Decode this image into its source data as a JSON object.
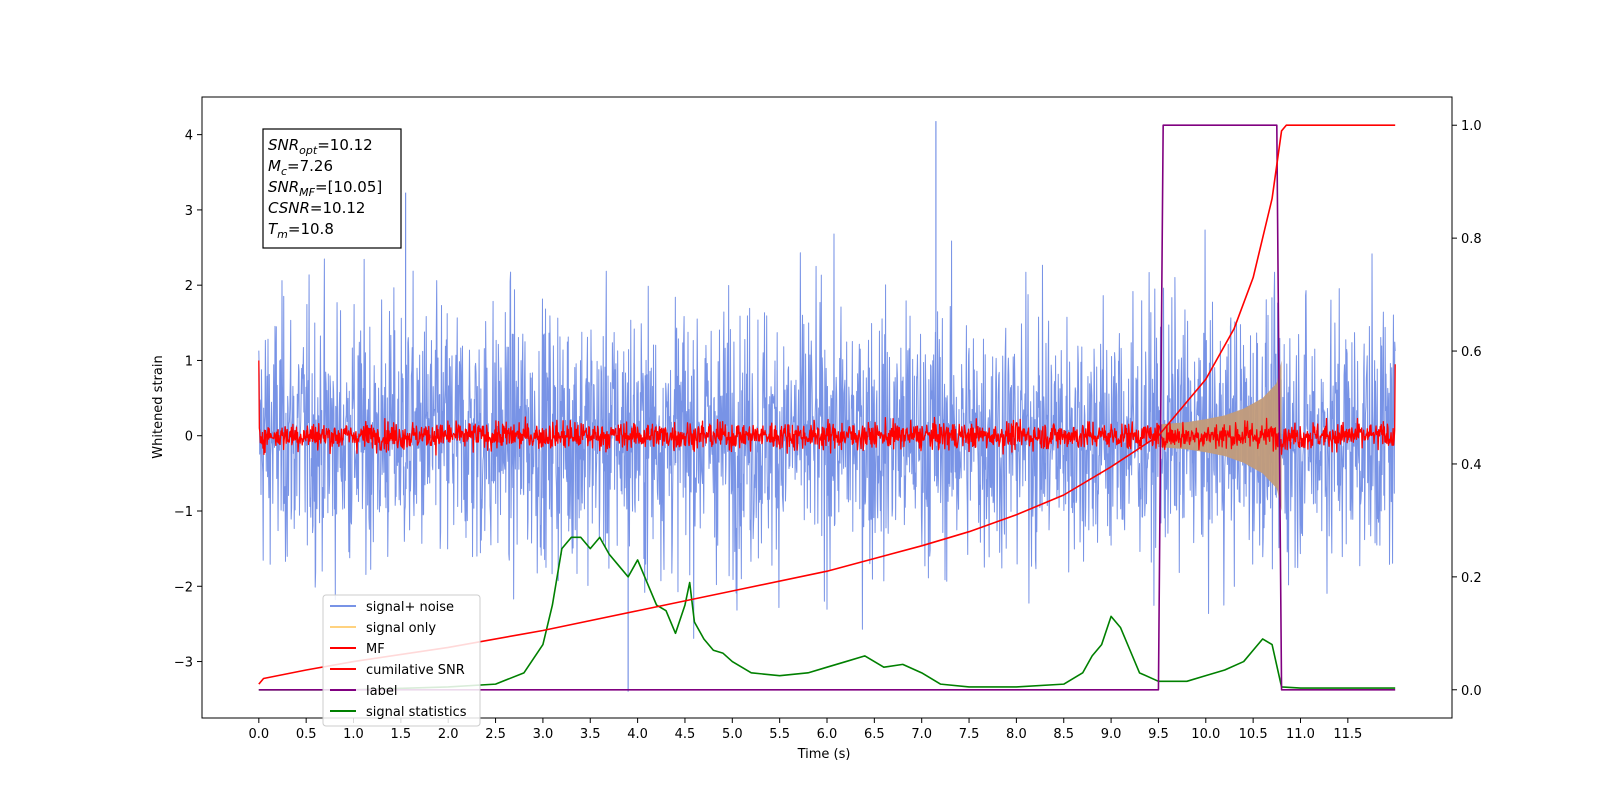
{
  "chart_data": {
    "type": "line",
    "title": "",
    "xlabel": "Time (s)",
    "ylabel": "Whitened strain",
    "xlim": [
      -0.6,
      12.6
    ],
    "ylim": [
      -3.75,
      4.5
    ],
    "y2lim": [
      -0.05,
      1.05
    ],
    "xticks": [
      "0.0",
      "0.5",
      "1.0",
      "1.5",
      "2.0",
      "2.5",
      "3.0",
      "3.5",
      "4.0",
      "4.5",
      "5.0",
      "5.5",
      "6.0",
      "6.5",
      "7.0",
      "7.5",
      "8.0",
      "8.5",
      "9.0",
      "9.5",
      "10.0",
      "10.5",
      "11.0",
      "11.5"
    ],
    "yticks": [
      "−3",
      "−2",
      "−1",
      "0",
      "1",
      "2",
      "3",
      "4"
    ],
    "y2ticks": [
      "0.0",
      "0.2",
      "0.4",
      "0.6",
      "0.8",
      "1.0"
    ],
    "grid": false,
    "legend_position": "lower-left",
    "annotation": {
      "lines": [
        {
          "sym": "SNR",
          "sub": "opt",
          "text": "=10.12"
        },
        {
          "sym": "M",
          "sub": "c",
          "text": "=7.26"
        },
        {
          "sym": "SNR",
          "sub": "MF",
          "text": "=[10.05]"
        },
        {
          "sym": "CSNR",
          "sub": "",
          "text": "=10.12"
        },
        {
          "sym": "T",
          "sub": "m",
          "text": "=10.8"
        }
      ]
    },
    "series": [
      {
        "name": "signal+ noise",
        "color": "#7893e6",
        "axis": "left",
        "style": "noise",
        "noise_std": 0.85,
        "x_range": [
          0.0,
          12.0
        ],
        "sample_peaks": [
          {
            "x": 7.15,
            "y": 4.18
          },
          {
            "x": 3.9,
            "y": -3.4
          },
          {
            "x": 1.55,
            "y": 3.23
          }
        ]
      },
      {
        "name": "signal only",
        "color": "#ffd27f",
        "axis": "left",
        "style": "chirp",
        "x": [
          9.5,
          9.8,
          10.0,
          10.2,
          10.4,
          10.6,
          10.75,
          10.8
        ],
        "envelope": [
          0.15,
          0.18,
          0.22,
          0.27,
          0.36,
          0.5,
          0.7,
          1.0
        ]
      },
      {
        "name": "MF",
        "color": "#ff0000",
        "axis": "left",
        "style": "noise",
        "noise_std": 0.09,
        "x_range": [
          0.0,
          12.0
        ]
      },
      {
        "name": "cumilative SNR",
        "color": "#ff0000",
        "axis": "right",
        "x": [
          0.0,
          0.05,
          0.5,
          1.0,
          2.0,
          3.0,
          4.0,
          5.0,
          6.0,
          7.0,
          7.5,
          8.0,
          8.5,
          9.0,
          9.5,
          10.0,
          10.3,
          10.5,
          10.7,
          10.8,
          10.85,
          12.0
        ],
        "values": [
          0.01,
          0.02,
          0.035,
          0.05,
          0.075,
          0.105,
          0.14,
          0.175,
          0.21,
          0.255,
          0.28,
          0.31,
          0.345,
          0.395,
          0.45,
          0.55,
          0.64,
          0.73,
          0.87,
          0.99,
          1.0,
          1.0
        ]
      },
      {
        "name": "label",
        "color": "#800080",
        "axis": "right",
        "x": [
          0.0,
          9.5,
          9.55,
          10.75,
          10.8,
          12.0
        ],
        "values": [
          0.0,
          0.0,
          1.0,
          1.0,
          0.0,
          0.0
        ]
      },
      {
        "name": "signal statistics",
        "color": "#008000",
        "axis": "right",
        "x": [
          0.0,
          1.0,
          2.0,
          2.5,
          2.8,
          3.0,
          3.1,
          3.2,
          3.3,
          3.4,
          3.5,
          3.6,
          3.7,
          3.8,
          3.9,
          4.0,
          4.1,
          4.2,
          4.3,
          4.4,
          4.5,
          4.55,
          4.6,
          4.7,
          4.8,
          4.9,
          5.0,
          5.2,
          5.5,
          5.8,
          6.0,
          6.2,
          6.4,
          6.6,
          6.8,
          7.0,
          7.2,
          7.5,
          8.0,
          8.5,
          8.7,
          8.8,
          8.9,
          9.0,
          9.1,
          9.2,
          9.3,
          9.5,
          9.8,
          10.0,
          10.2,
          10.4,
          10.5,
          10.6,
          10.7,
          10.8,
          11.0,
          12.0
        ],
        "values": [
          0.0,
          0.0,
          0.005,
          0.01,
          0.03,
          0.08,
          0.15,
          0.25,
          0.27,
          0.27,
          0.25,
          0.27,
          0.24,
          0.22,
          0.2,
          0.23,
          0.19,
          0.15,
          0.14,
          0.1,
          0.15,
          0.19,
          0.12,
          0.09,
          0.07,
          0.065,
          0.05,
          0.03,
          0.025,
          0.03,
          0.04,
          0.05,
          0.06,
          0.04,
          0.045,
          0.03,
          0.01,
          0.005,
          0.005,
          0.01,
          0.03,
          0.06,
          0.08,
          0.13,
          0.11,
          0.07,
          0.03,
          0.015,
          0.015,
          0.025,
          0.035,
          0.05,
          0.07,
          0.09,
          0.08,
          0.005,
          0.003,
          0.003
        ]
      }
    ]
  }
}
